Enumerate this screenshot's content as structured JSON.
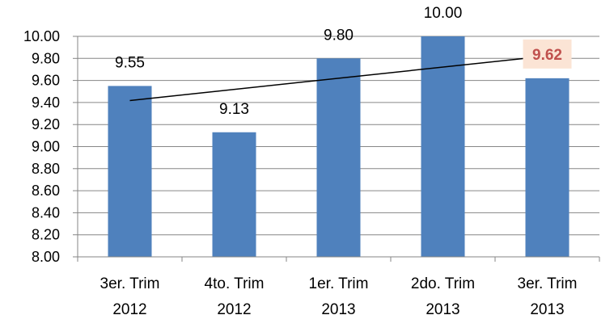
{
  "chart_data": {
    "type": "bar",
    "title": "",
    "xlabel": "",
    "ylabel": "",
    "categories": [
      [
        "3er. Trim",
        "2012"
      ],
      [
        "4to. Trim",
        "2012"
      ],
      [
        "1er. Trim",
        "2013"
      ],
      [
        "2do. Trim",
        "2013"
      ],
      [
        "3er. Trim",
        "2013"
      ]
    ],
    "values": [
      9.55,
      9.13,
      9.8,
      10.0,
      9.62
    ],
    "data_labels": [
      "9.55",
      "9.13",
      "9.80",
      "10.00",
      "9.62"
    ],
    "highlighted_label_index": 4,
    "ylim": [
      8.0,
      10.0
    ],
    "yticks": [
      "8.00",
      "8.20",
      "8.40",
      "8.60",
      "8.80",
      "9.00",
      "9.20",
      "9.40",
      "9.60",
      "9.80",
      "10.00"
    ],
    "trendline": {
      "type": "linear"
    },
    "grid": true,
    "legend": "none",
    "colors": {
      "bar": "#4f81bd",
      "grid": "#868686",
      "trendline": "#000000",
      "highlight_text": "#c0504d",
      "highlight_bg": "#fbe4d5"
    }
  }
}
